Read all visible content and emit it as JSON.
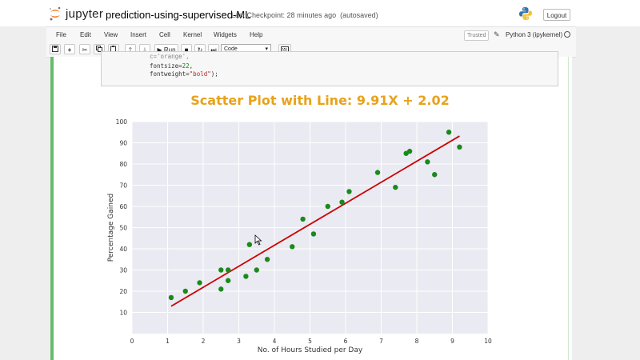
{
  "app": {
    "logo_text": "jupyter",
    "notebook_name": "prediction-using-supervised-ML",
    "checkpoint": "Last Checkpoint: 28 minutes ago",
    "autosave": "(autosaved)",
    "logout_label": "Logout",
    "trusted_label": "Trusted",
    "kernel_name": "Python 3 (ipykernel)"
  },
  "menu": [
    "File",
    "Edit",
    "View",
    "Insert",
    "Cell",
    "Kernel",
    "Widgets",
    "Help"
  ],
  "toolbar": {
    "run_label": "Run",
    "cell_type": "Code",
    "icons": [
      "save-icon",
      "plus-icon",
      "cut-icon",
      "copy-icon",
      "paste-icon",
      "arrow-up-icon",
      "arrow-down-icon",
      "play-icon",
      "stop-icon",
      "restart-icon",
      "fast-forward-icon",
      "keyboard-icon"
    ]
  },
  "code_cell": {
    "line1": "c='orange',",
    "line2_key": "fontsize=",
    "line2_val": "22",
    "line3_key": "fontweight=",
    "line3_val": "\"bold\"",
    "line3_end": ");"
  },
  "colors": {
    "title": "#e8a21a",
    "points": "#1a8a1a",
    "line": "#cc0000",
    "plot_bg": "#eaeaf2",
    "cell_bar": "#66bb6a"
  },
  "chart_data": {
    "type": "scatter",
    "title": "Scatter Plot with Line: 9.91X + 2.02",
    "xlabel": "No. of Hours Studied per Day",
    "ylabel": "Percentage Gained",
    "xlim": [
      0,
      10
    ],
    "ylim": [
      0,
      100
    ],
    "xticks": [
      0,
      1,
      2,
      3,
      4,
      5,
      6,
      7,
      8,
      9,
      10
    ],
    "yticks": [
      10,
      20,
      30,
      40,
      50,
      60,
      70,
      80,
      90,
      100
    ],
    "grid": true,
    "points": [
      [
        1.1,
        17
      ],
      [
        1.5,
        20
      ],
      [
        1.9,
        24
      ],
      [
        2.5,
        21
      ],
      [
        2.5,
        30
      ],
      [
        2.7,
        25
      ],
      [
        2.7,
        30
      ],
      [
        3.2,
        27
      ],
      [
        3.3,
        42
      ],
      [
        3.5,
        30
      ],
      [
        3.8,
        35
      ],
      [
        4.5,
        41
      ],
      [
        4.8,
        54
      ],
      [
        5.1,
        47
      ],
      [
        5.5,
        60
      ],
      [
        5.9,
        62
      ],
      [
        6.1,
        67
      ],
      [
        6.9,
        76
      ],
      [
        7.4,
        69
      ],
      [
        7.7,
        85
      ],
      [
        7.8,
        86
      ],
      [
        8.3,
        81
      ],
      [
        8.5,
        75
      ],
      [
        8.9,
        95
      ],
      [
        9.2,
        88
      ]
    ],
    "line": {
      "slope": 9.91,
      "intercept": 2.02,
      "x_start": 1.1,
      "x_end": 9.2
    }
  }
}
